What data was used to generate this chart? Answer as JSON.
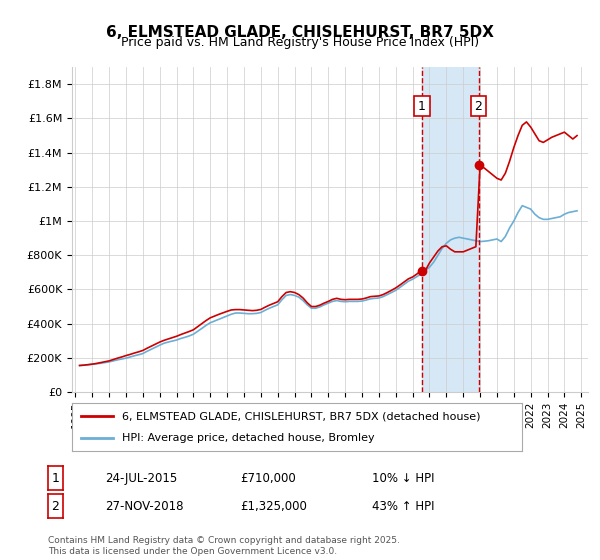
{
  "title": "6, ELMSTEAD GLADE, CHISLEHURST, BR7 5DX",
  "subtitle": "Price paid vs. HM Land Registry's House Price Index (HPI)",
  "xlabel": "",
  "ylabel": "",
  "ylim": [
    0,
    1900000
  ],
  "yticks": [
    0,
    200000,
    400000,
    600000,
    800000,
    1000000,
    1200000,
    1400000,
    1600000,
    1800000
  ],
  "ytick_labels": [
    "£0",
    "£200K",
    "£400K",
    "£600K",
    "£800K",
    "£1M",
    "£1.2M",
    "£1.4M",
    "£1.6M",
    "£1.8M"
  ],
  "hpi_color": "#6baed6",
  "price_color": "#cc0000",
  "legend_label_price": "6, ELMSTEAD GLADE, CHISLEHURST, BR7 5DX (detached house)",
  "legend_label_hpi": "HPI: Average price, detached house, Bromley",
  "sale1_date": 2015.56,
  "sale1_price": 710000,
  "sale1_label": "1",
  "sale2_date": 2018.91,
  "sale2_price": 1325000,
  "sale2_label": "2",
  "annotation1": "1     24-JUL-2015          £710,000          10% ↓ HPI",
  "annotation2": "2     27-NOV-2018          £1,325,000        43% ↑ HPI",
  "footer": "Contains HM Land Registry data © Crown copyright and database right 2025.\nThis data is licensed under the Open Government Licence v3.0.",
  "shaded_xmin": 2015.56,
  "shaded_xmax": 2018.91,
  "vline1_x": 2015.56,
  "vline2_x": 2018.91,
  "hpi_data": {
    "years": [
      1995.25,
      1995.5,
      1995.75,
      1996.0,
      1996.25,
      1996.5,
      1996.75,
      1997.0,
      1997.25,
      1997.5,
      1997.75,
      1998.0,
      1998.25,
      1998.5,
      1998.75,
      1999.0,
      1999.25,
      1999.5,
      1999.75,
      2000.0,
      2000.25,
      2000.5,
      2000.75,
      2001.0,
      2001.25,
      2001.5,
      2001.75,
      2002.0,
      2002.25,
      2002.5,
      2002.75,
      2003.0,
      2003.25,
      2003.5,
      2003.75,
      2004.0,
      2004.25,
      2004.5,
      2004.75,
      2005.0,
      2005.25,
      2005.5,
      2005.75,
      2006.0,
      2006.25,
      2006.5,
      2006.75,
      2007.0,
      2007.25,
      2007.5,
      2007.75,
      2008.0,
      2008.25,
      2008.5,
      2008.75,
      2009.0,
      2009.25,
      2009.5,
      2009.75,
      2010.0,
      2010.25,
      2010.5,
      2010.75,
      2011.0,
      2011.25,
      2011.5,
      2011.75,
      2012.0,
      2012.25,
      2012.5,
      2012.75,
      2013.0,
      2013.25,
      2013.5,
      2013.75,
      2014.0,
      2014.25,
      2014.5,
      2014.75,
      2015.0,
      2015.25,
      2015.5,
      2015.75,
      2016.0,
      2016.25,
      2016.5,
      2016.75,
      2017.0,
      2017.25,
      2017.5,
      2017.75,
      2018.0,
      2018.25,
      2018.5,
      2018.75,
      2019.0,
      2019.25,
      2019.5,
      2019.75,
      2020.0,
      2020.25,
      2020.5,
      2020.75,
      2021.0,
      2021.25,
      2021.5,
      2021.75,
      2022.0,
      2022.25,
      2022.5,
      2022.75,
      2023.0,
      2023.25,
      2023.5,
      2023.75,
      2024.0,
      2024.25,
      2024.5,
      2024.75
    ],
    "values": [
      155000,
      157000,
      159000,
      162000,
      165000,
      168000,
      172000,
      176000,
      182000,
      188000,
      193000,
      198000,
      205000,
      212000,
      218000,
      225000,
      238000,
      250000,
      262000,
      274000,
      285000,
      292000,
      298000,
      304000,
      313000,
      320000,
      328000,
      338000,
      355000,
      372000,
      390000,
      405000,
      415000,
      425000,
      435000,
      445000,
      455000,
      462000,
      462000,
      460000,
      458000,
      458000,
      460000,
      465000,
      478000,
      490000,
      500000,
      510000,
      540000,
      565000,
      570000,
      565000,
      555000,
      535000,
      510000,
      490000,
      490000,
      498000,
      510000,
      520000,
      530000,
      535000,
      530000,
      528000,
      530000,
      530000,
      530000,
      532000,
      538000,
      545000,
      548000,
      550000,
      558000,
      570000,
      582000,
      595000,
      612000,
      630000,
      648000,
      660000,
      675000,
      690000,
      710000,
      730000,
      760000,
      800000,
      840000,
      870000,
      890000,
      900000,
      905000,
      900000,
      895000,
      890000,
      885000,
      880000,
      882000,
      885000,
      890000,
      895000,
      880000,
      910000,
      960000,
      1000000,
      1050000,
      1090000,
      1080000,
      1070000,
      1040000,
      1020000,
      1010000,
      1010000,
      1015000,
      1020000,
      1025000,
      1040000,
      1050000,
      1055000,
      1060000
    ]
  },
  "price_data": {
    "years": [
      1995.25,
      1995.5,
      1995.75,
      1996.0,
      1996.25,
      1996.5,
      1996.75,
      1997.0,
      1997.25,
      1997.5,
      1997.75,
      1998.0,
      1998.25,
      1998.5,
      1998.75,
      1999.0,
      1999.25,
      1999.5,
      1999.75,
      2000.0,
      2000.25,
      2000.5,
      2000.75,
      2001.0,
      2001.25,
      2001.5,
      2001.75,
      2002.0,
      2002.25,
      2002.5,
      2002.75,
      2003.0,
      2003.25,
      2003.5,
      2003.75,
      2004.0,
      2004.25,
      2004.5,
      2004.75,
      2005.0,
      2005.25,
      2005.5,
      2005.75,
      2006.0,
      2006.25,
      2006.5,
      2006.75,
      2007.0,
      2007.25,
      2007.5,
      2007.75,
      2008.0,
      2008.25,
      2008.5,
      2008.75,
      2009.0,
      2009.25,
      2009.5,
      2009.75,
      2010.0,
      2010.25,
      2010.5,
      2010.75,
      2011.0,
      2011.25,
      2011.5,
      2011.75,
      2012.0,
      2012.25,
      2012.5,
      2012.75,
      2013.0,
      2013.25,
      2013.5,
      2013.75,
      2014.0,
      2014.25,
      2014.5,
      2014.75,
      2015.0,
      2015.25,
      2015.5,
      2015.75,
      2016.0,
      2016.25,
      2016.5,
      2016.75,
      2017.0,
      2017.25,
      2017.5,
      2017.75,
      2018.0,
      2018.25,
      2018.5,
      2018.75,
      2019.0,
      2019.25,
      2019.5,
      2019.75,
      2020.0,
      2020.25,
      2020.5,
      2020.75,
      2021.0,
      2021.25,
      2021.5,
      2021.75,
      2022.0,
      2022.25,
      2022.5,
      2022.75,
      2023.0,
      2023.25,
      2023.5,
      2023.75,
      2024.0,
      2024.25,
      2024.5,
      2024.75
    ],
    "values": [
      155000,
      157000,
      160000,
      163000,
      167000,
      172000,
      177000,
      182000,
      190000,
      198000,
      205000,
      213000,
      220000,
      228000,
      235000,
      243000,
      256000,
      268000,
      280000,
      292000,
      302000,
      310000,
      318000,
      326000,
      336000,
      345000,
      354000,
      364000,
      382000,
      400000,
      418000,
      434000,
      444000,
      454000,
      463000,
      472000,
      480000,
      482000,
      482000,
      480000,
      478000,
      476000,
      478000,
      483000,
      496000,
      508000,
      518000,
      528000,
      558000,
      582000,
      587000,
      582000,
      570000,
      550000,
      522000,
      500000,
      500000,
      508000,
      520000,
      530000,
      542000,
      548000,
      542000,
      540000,
      542000,
      542000,
      542000,
      544000,
      550000,
      558000,
      560000,
      562000,
      570000,
      582000,
      595000,
      609000,
      626000,
      644000,
      662000,
      673000,
      690000,
      710000,
      710000,
      755000,
      790000,
      825000,
      850000,
      855000,
      835000,
      820000,
      820000,
      820000,
      830000,
      840000,
      850000,
      1325000,
      1310000,
      1290000,
      1270000,
      1250000,
      1240000,
      1280000,
      1350000,
      1430000,
      1500000,
      1560000,
      1580000,
      1550000,
      1510000,
      1470000,
      1460000,
      1475000,
      1490000,
      1500000,
      1510000,
      1520000,
      1500000,
      1480000,
      1500000
    ]
  },
  "xticks": [
    1995,
    1996,
    1997,
    1998,
    1999,
    2000,
    2001,
    2002,
    2003,
    2004,
    2005,
    2006,
    2007,
    2008,
    2009,
    2010,
    2011,
    2012,
    2013,
    2014,
    2015,
    2016,
    2017,
    2018,
    2019,
    2020,
    2021,
    2022,
    2023,
    2024,
    2025
  ],
  "xlim": [
    1994.8,
    2025.4
  ],
  "background_color": "#ffffff",
  "grid_color": "#cccccc",
  "shaded_color": "#d6e8f5"
}
